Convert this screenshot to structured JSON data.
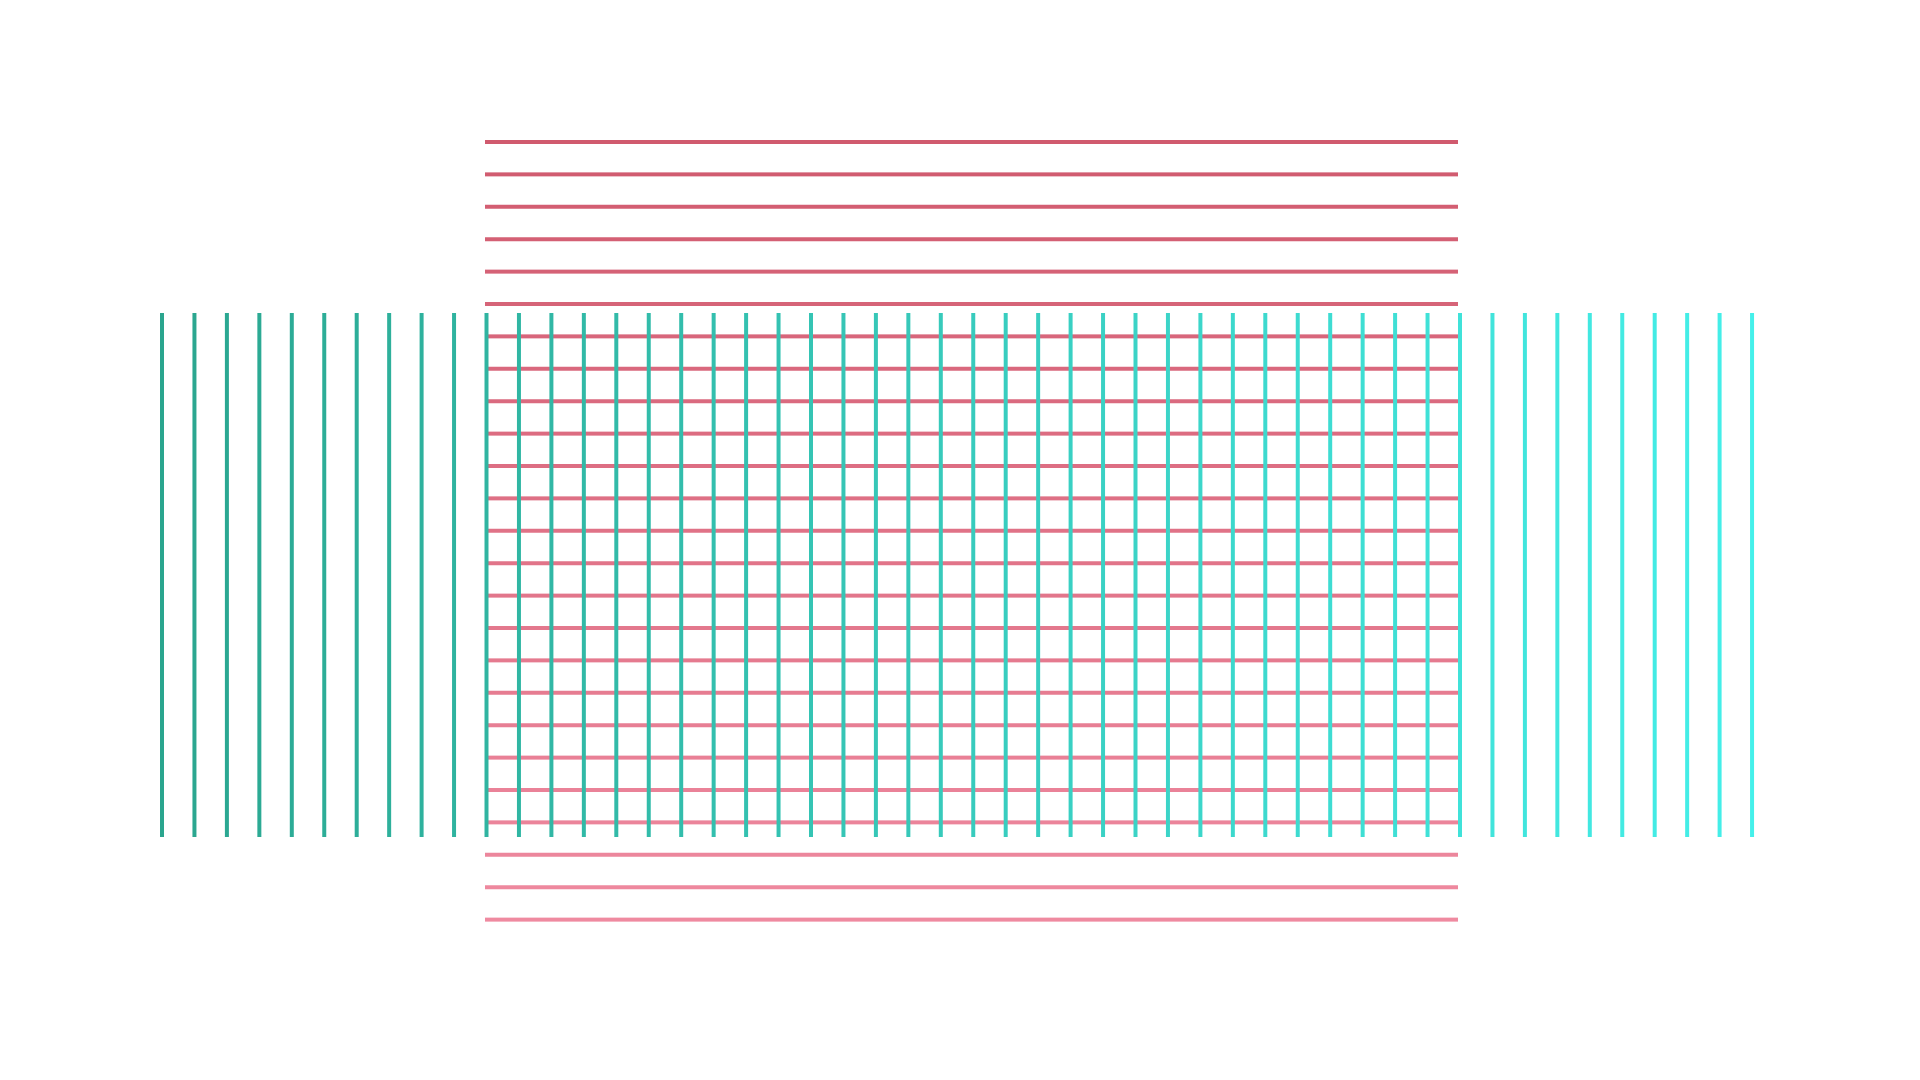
{
  "background": "#ffffff",
  "pattern": {
    "description_hidden": "",
    "horizontal_lines": {
      "count": 25,
      "color_top": "#d05a6e",
      "color_bottom": "#ef8aa0"
    },
    "vertical_lines": {
      "count": 50,
      "color_left": "#2aa58e",
      "color_right": "#45f0ea"
    }
  }
}
